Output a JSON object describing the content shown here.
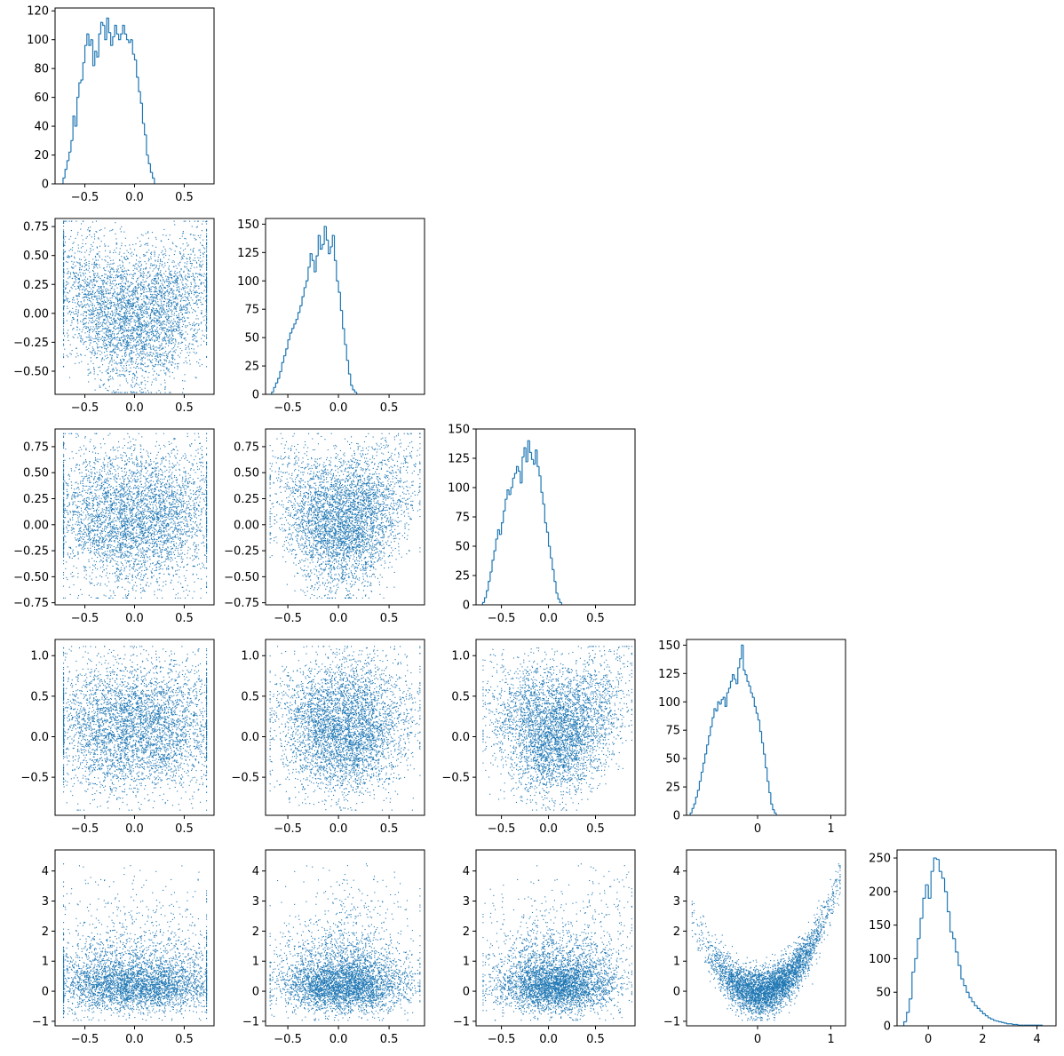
{
  "figure": {
    "layout": "corner-plot",
    "dimensions": 5,
    "line_color": "#1f77b4",
    "point_color": "#1f77b4"
  },
  "chart_data": [
    {
      "type": "histogram",
      "row": 0,
      "col": 0,
      "var": 0,
      "xlim": [
        -0.8,
        0.8
      ],
      "ylim": [
        0,
        122
      ],
      "xticks": [
        -0.5,
        0,
        0.5
      ],
      "xtick_labels": [
        "−0.5",
        "0.0",
        "0.5"
      ],
      "yticks": [
        0,
        20,
        40,
        60,
        80,
        100,
        120
      ],
      "ytick_labels": [
        "0",
        "20",
        "40",
        "60",
        "80",
        "100",
        "120"
      ],
      "bin_start": -0.72,
      "bin_width": 0.02,
      "counts": [
        4,
        10,
        16,
        22,
        30,
        47,
        40,
        60,
        70,
        72,
        84,
        96,
        104,
        96,
        100,
        82,
        92,
        88,
        104,
        112,
        110,
        100,
        115,
        105,
        96,
        102,
        110,
        104,
        100,
        104,
        110,
        104,
        100,
        98,
        100,
        90,
        86,
        74,
        64,
        56,
        42,
        34,
        20,
        14,
        8,
        4
      ]
    },
    {
      "type": "scatter",
      "row": 1,
      "col": 0,
      "xvar": 0,
      "yvar": 1,
      "xlim": [
        -0.8,
        0.8
      ],
      "ylim": [
        -0.7,
        0.82
      ],
      "xticks": [
        -0.5,
        0,
        0.5
      ],
      "xtick_labels": [
        "−0.5",
        "0.0",
        "0.5"
      ],
      "yticks": [
        -0.5,
        -0.25,
        0,
        0.25,
        0.5,
        0.75
      ],
      "ytick_labels": [
        "−0.50",
        "−0.25",
        "0.00",
        "0.25",
        "0.50",
        "0.75"
      ]
    },
    {
      "type": "histogram",
      "row": 1,
      "col": 1,
      "var": 1,
      "xlim": [
        -0.72,
        0.85
      ],
      "ylim": [
        0,
        155
      ],
      "xticks": [
        -0.5,
        0,
        0.5
      ],
      "xtick_labels": [
        "−0.5",
        "0.0",
        "0.5"
      ],
      "yticks": [
        0,
        25,
        50,
        75,
        100,
        125,
        150
      ],
      "ytick_labels": [
        "0",
        "25",
        "50",
        "75",
        "100",
        "125",
        "150"
      ],
      "bin_start": -0.66,
      "bin_width": 0.02,
      "counts": [
        2,
        6,
        10,
        14,
        20,
        28,
        34,
        40,
        48,
        54,
        58,
        62,
        66,
        72,
        78,
        86,
        94,
        100,
        112,
        124,
        118,
        108,
        122,
        140,
        128,
        132,
        148,
        136,
        124,
        130,
        140,
        118,
        100,
        90,
        74,
        58,
        44,
        30,
        18,
        8,
        4,
        2
      ]
    },
    {
      "type": "scatter",
      "row": 2,
      "col": 0,
      "xvar": 0,
      "yvar": 2,
      "xlim": [
        -0.8,
        0.8
      ],
      "ylim": [
        -0.77,
        0.92
      ],
      "xticks": [
        -0.5,
        0,
        0.5
      ],
      "xtick_labels": [
        "−0.5",
        "0.0",
        "0.5"
      ],
      "yticks": [
        -0.75,
        -0.5,
        -0.25,
        0,
        0.25,
        0.5,
        0.75
      ],
      "ytick_labels": [
        "−0.75",
        "−0.50",
        "−0.25",
        "0.00",
        "0.25",
        "0.50",
        "0.75"
      ]
    },
    {
      "type": "scatter",
      "row": 2,
      "col": 1,
      "xvar": 1,
      "yvar": 2,
      "xlim": [
        -0.72,
        0.85
      ],
      "ylim": [
        -0.77,
        0.92
      ],
      "xticks": [
        -0.5,
        0,
        0.5
      ],
      "xtick_labels": [
        "−0.5",
        "0.0",
        "0.5"
      ],
      "yticks": [
        -0.75,
        -0.5,
        -0.25,
        0,
        0.25,
        0.5,
        0.75
      ],
      "ytick_labels": [
        "−0.75",
        "−0.50",
        "−0.25",
        "0.00",
        "0.25",
        "0.50",
        "0.75"
      ]
    },
    {
      "type": "histogram",
      "row": 2,
      "col": 2,
      "var": 2,
      "xlim": [
        -0.77,
        0.92
      ],
      "ylim": [
        0,
        150
      ],
      "xticks": [
        -0.5,
        0,
        0.5
      ],
      "xtick_labels": [
        "−0.5",
        "0.0",
        "0.5"
      ],
      "yticks": [
        0,
        25,
        50,
        75,
        100,
        125,
        150
      ],
      "ytick_labels": [
        "0",
        "25",
        "50",
        "75",
        "100",
        "125",
        "150"
      ],
      "bin_start": -0.7,
      "bin_width": 0.02,
      "counts": [
        2,
        6,
        12,
        20,
        28,
        38,
        46,
        56,
        64,
        60,
        70,
        80,
        90,
        98,
        94,
        100,
        108,
        112,
        118,
        114,
        104,
        126,
        134,
        122,
        140,
        130,
        124,
        120,
        132,
        118,
        110,
        96,
        86,
        70,
        62,
        50,
        40,
        30,
        20,
        10,
        5,
        2
      ]
    },
    {
      "type": "scatter",
      "row": 3,
      "col": 0,
      "xvar": 0,
      "yvar": 3,
      "xlim": [
        -0.8,
        0.8
      ],
      "ylim": [
        -0.97,
        1.2
      ],
      "xticks": [
        -0.5,
        0,
        0.5
      ],
      "xtick_labels": [
        "−0.5",
        "0.0",
        "0.5"
      ],
      "yticks": [
        -0.5,
        0,
        0.5,
        1.0
      ],
      "ytick_labels": [
        "−0.5",
        "0.0",
        "0.5",
        "1.0"
      ]
    },
    {
      "type": "scatter",
      "row": 3,
      "col": 1,
      "xvar": 1,
      "yvar": 3,
      "xlim": [
        -0.72,
        0.85
      ],
      "ylim": [
        -0.97,
        1.2
      ],
      "xticks": [
        -0.5,
        0,
        0.5
      ],
      "xtick_labels": [
        "−0.5",
        "0.0",
        "0.5"
      ],
      "yticks": [
        -0.5,
        0,
        0.5,
        1.0
      ],
      "ytick_labels": [
        "−0.5",
        "0.0",
        "0.5",
        "1.0"
      ]
    },
    {
      "type": "scatter",
      "row": 3,
      "col": 2,
      "xvar": 2,
      "yvar": 3,
      "xlim": [
        -0.77,
        0.92
      ],
      "ylim": [
        -0.97,
        1.2
      ],
      "xticks": [
        -0.5,
        0,
        0.5
      ],
      "xtick_labels": [
        "−0.5",
        "0.0",
        "0.5"
      ],
      "yticks": [
        -0.5,
        0,
        0.5,
        1.0
      ],
      "ytick_labels": [
        "−0.5",
        "0.0",
        "0.5",
        "1.0"
      ]
    },
    {
      "type": "histogram",
      "row": 3,
      "col": 3,
      "var": 3,
      "xlim": [
        -0.97,
        1.2
      ],
      "ylim": [
        0,
        155
      ],
      "xticks": [
        0,
        1
      ],
      "xtick_labels": [
        "0",
        "1"
      ],
      "yticks": [
        0,
        25,
        50,
        75,
        100,
        125,
        150
      ],
      "ytick_labels": [
        "0",
        "25",
        "50",
        "75",
        "100",
        "125",
        "150"
      ],
      "bin_start": -0.92,
      "bin_width": 0.025,
      "counts": [
        2,
        6,
        10,
        16,
        22,
        30,
        38,
        46,
        54,
        62,
        70,
        78,
        86,
        94,
        92,
        100,
        98,
        102,
        104,
        96,
        108,
        112,
        118,
        124,
        120,
        116,
        130,
        138,
        150,
        128,
        124,
        118,
        114,
        108,
        104,
        96,
        90,
        84,
        74,
        64,
        54,
        42,
        30,
        20,
        10,
        5,
        2
      ]
    },
    {
      "type": "scatter",
      "row": 4,
      "col": 0,
      "xvar": 0,
      "yvar": 4,
      "xlim": [
        -0.8,
        0.8
      ],
      "ylim": [
        -1.15,
        4.7
      ],
      "xticks": [
        -0.5,
        0,
        0.5
      ],
      "xtick_labels": [
        "−0.5",
        "0.0",
        "0.5"
      ],
      "yticks": [
        -1,
        0,
        1,
        2,
        3,
        4
      ],
      "ytick_labels": [
        "−1",
        "0",
        "1",
        "2",
        "3",
        "4"
      ]
    },
    {
      "type": "scatter",
      "row": 4,
      "col": 1,
      "xvar": 1,
      "yvar": 4,
      "xlim": [
        -0.72,
        0.85
      ],
      "ylim": [
        -1.15,
        4.7
      ],
      "xticks": [
        -0.5,
        0,
        0.5
      ],
      "xtick_labels": [
        "−0.5",
        "0.0",
        "0.5"
      ],
      "yticks": [
        -1,
        0,
        1,
        2,
        3,
        4
      ],
      "ytick_labels": [
        "−1",
        "0",
        "1",
        "2",
        "3",
        "4"
      ]
    },
    {
      "type": "scatter",
      "row": 4,
      "col": 2,
      "xvar": 2,
      "yvar": 4,
      "xlim": [
        -0.77,
        0.92
      ],
      "ylim": [
        -1.15,
        4.7
      ],
      "xticks": [
        -0.5,
        0,
        0.5
      ],
      "xtick_labels": [
        "−0.5",
        "0.0",
        "0.5"
      ],
      "yticks": [
        -1,
        0,
        1,
        2,
        3,
        4
      ],
      "ytick_labels": [
        "−1",
        "0",
        "1",
        "2",
        "3",
        "4"
      ]
    },
    {
      "type": "scatter",
      "row": 4,
      "col": 3,
      "xvar": 3,
      "yvar": 4,
      "xlim": [
        -0.97,
        1.2
      ],
      "ylim": [
        -1.15,
        4.7
      ],
      "xticks": [
        0,
        1
      ],
      "xtick_labels": [
        "0",
        "1"
      ],
      "yticks": [
        -1,
        0,
        1,
        2,
        3,
        4
      ],
      "ytick_labels": [
        "−1",
        "0",
        "1",
        "2",
        "3",
        "4"
      ]
    },
    {
      "type": "histogram",
      "row": 4,
      "col": 4,
      "var": 4,
      "xlim": [
        -1.15,
        4.7
      ],
      "ylim": [
        0,
        262
      ],
      "xticks": [
        0,
        2,
        4
      ],
      "xtick_labels": [
        "0",
        "2",
        "4"
      ],
      "yticks": [
        0,
        50,
        100,
        150,
        200,
        250
      ],
      "ytick_labels": [
        "0",
        "50",
        "100",
        "150",
        "200",
        "250"
      ],
      "bin_start": -0.9,
      "bin_width": 0.1,
      "counts": [
        6,
        20,
        40,
        80,
        100,
        130,
        160,
        190,
        210,
        190,
        230,
        250,
        248,
        230,
        220,
        200,
        170,
        140,
        130,
        110,
        90,
        70,
        60,
        50,
        42,
        36,
        30,
        26,
        22,
        18,
        15,
        12,
        10,
        8,
        7,
        6,
        5,
        4,
        3,
        3,
        2,
        2,
        1,
        1,
        1,
        1,
        1,
        1,
        1,
        1,
        1
      ]
    }
  ]
}
